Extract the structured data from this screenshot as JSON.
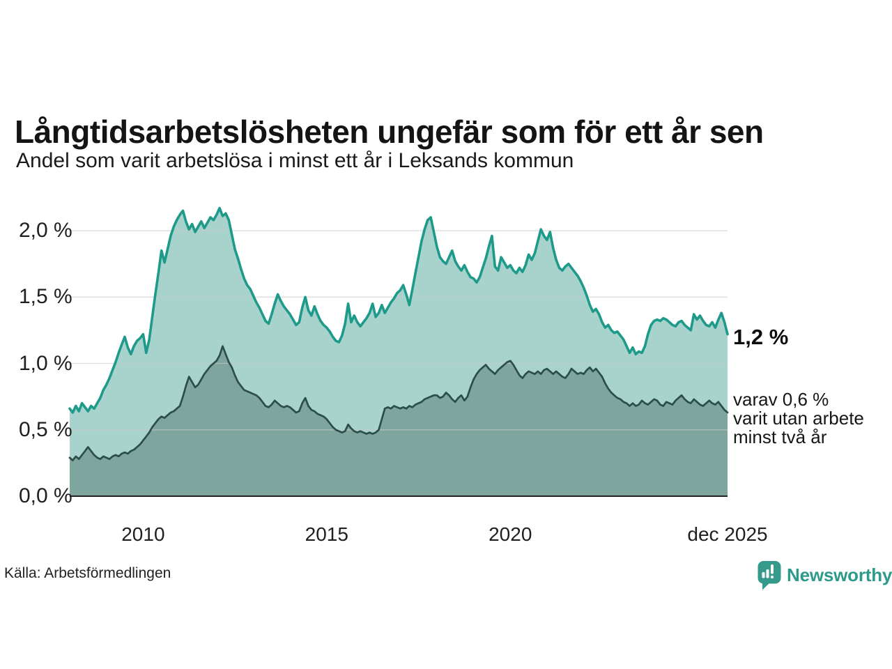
{
  "header": {
    "title": "Långtidsarbetslösheten ungefär som för ett år sen",
    "subtitle": "Andel som varit arbetslösa i minst ett år i Leksands kommun"
  },
  "labels": {
    "series1_end_value": "1,2 %",
    "series2_note_lines": [
      "varav 0,6 %",
      "varit utan arbete",
      "minst två år"
    ]
  },
  "footer": {
    "source": "Källa: Arbetsförmedlingen",
    "brand": "Newsworthy"
  },
  "colors": {
    "series1_line": "#1d9a8a",
    "series1_fill": "#a8d3cc",
    "series2_line": "#2d4e48",
    "series2_fill": "#7ea69e",
    "gridline": "rgba(200,200,200,0.55)",
    "axis_line": "#222222",
    "brand_teal": "#35998c"
  },
  "chart_data": {
    "type": "area",
    "title": "Långtidsarbetslösheten ungefär som för ett år sen",
    "subtitle": "Andel som varit arbetslösa i minst ett år i Leksands kommun",
    "unit": "%",
    "frequency": "monthly",
    "x_start": "2008-01",
    "x_end": "2025-12",
    "ylim": [
      0,
      2.26
    ],
    "grid": true,
    "ytick_labels": [
      "2,0 %",
      "1,5 %",
      "1,0 %",
      "0,5 %",
      "0,0 %"
    ],
    "ytick_values": [
      2.0,
      1.5,
      1.0,
      0.5,
      0.0
    ],
    "xticks": [
      {
        "label": "2010",
        "month_index": 24
      },
      {
        "label": "2015",
        "month_index": 84
      },
      {
        "label": "2020",
        "month_index": 144
      },
      {
        "label": "dec 2025",
        "month_index": 215
      }
    ],
    "series": [
      {
        "name": "Arbetslösa minst ett år",
        "end_label": "1,2 %",
        "end_value": 1.2,
        "values": [
          0.66,
          0.63,
          0.68,
          0.64,
          0.7,
          0.67,
          0.64,
          0.68,
          0.66,
          0.7,
          0.74,
          0.8,
          0.84,
          0.89,
          0.95,
          1.01,
          1.08,
          1.14,
          1.2,
          1.12,
          1.07,
          1.13,
          1.17,
          1.19,
          1.22,
          1.08,
          1.18,
          1.35,
          1.52,
          1.68,
          1.85,
          1.76,
          1.86,
          1.96,
          2.03,
          2.08,
          2.12,
          2.15,
          2.07,
          2.01,
          2.05,
          1.99,
          2.03,
          2.07,
          2.02,
          2.06,
          2.1,
          2.08,
          2.12,
          2.17,
          2.11,
          2.13,
          2.08,
          1.97,
          1.86,
          1.79,
          1.71,
          1.64,
          1.59,
          1.56,
          1.51,
          1.46,
          1.42,
          1.37,
          1.32,
          1.3,
          1.37,
          1.45,
          1.52,
          1.47,
          1.43,
          1.4,
          1.37,
          1.33,
          1.29,
          1.31,
          1.42,
          1.5,
          1.4,
          1.36,
          1.43,
          1.37,
          1.32,
          1.29,
          1.27,
          1.24,
          1.2,
          1.17,
          1.16,
          1.21,
          1.3,
          1.45,
          1.31,
          1.36,
          1.31,
          1.28,
          1.31,
          1.34,
          1.38,
          1.45,
          1.35,
          1.38,
          1.44,
          1.38,
          1.42,
          1.46,
          1.49,
          1.53,
          1.55,
          1.59,
          1.52,
          1.44,
          1.56,
          1.68,
          1.8,
          1.92,
          2.01,
          2.08,
          2.1,
          1.99,
          1.88,
          1.8,
          1.77,
          1.75,
          1.8,
          1.85,
          1.77,
          1.73,
          1.7,
          1.74,
          1.69,
          1.65,
          1.64,
          1.61,
          1.65,
          1.72,
          1.79,
          1.88,
          1.96,
          1.73,
          1.7,
          1.8,
          1.76,
          1.72,
          1.74,
          1.7,
          1.68,
          1.72,
          1.69,
          1.74,
          1.82,
          1.78,
          1.83,
          1.92,
          2.01,
          1.96,
          1.93,
          1.99,
          1.87,
          1.78,
          1.72,
          1.7,
          1.73,
          1.75,
          1.72,
          1.69,
          1.66,
          1.62,
          1.57,
          1.51,
          1.44,
          1.39,
          1.41,
          1.37,
          1.31,
          1.27,
          1.29,
          1.25,
          1.23,
          1.24,
          1.21,
          1.18,
          1.13,
          1.08,
          1.12,
          1.07,
          1.09,
          1.08,
          1.13,
          1.22,
          1.29,
          1.32,
          1.33,
          1.32,
          1.34,
          1.33,
          1.31,
          1.29,
          1.28,
          1.31,
          1.32,
          1.29,
          1.27,
          1.25,
          1.37,
          1.33,
          1.36,
          1.32,
          1.29,
          1.28,
          1.31,
          1.27,
          1.33,
          1.38,
          1.31,
          1.22
        ]
      },
      {
        "name": "Arbetslösa minst två år",
        "end_label": "varav 0,6 % varit utan arbete minst två år",
        "end_value": 0.6,
        "values": [
          0.29,
          0.27,
          0.3,
          0.28,
          0.31,
          0.34,
          0.37,
          0.34,
          0.31,
          0.29,
          0.28,
          0.3,
          0.29,
          0.28,
          0.3,
          0.31,
          0.3,
          0.32,
          0.33,
          0.32,
          0.34,
          0.35,
          0.37,
          0.39,
          0.42,
          0.45,
          0.48,
          0.52,
          0.55,
          0.58,
          0.6,
          0.59,
          0.61,
          0.63,
          0.64,
          0.66,
          0.68,
          0.75,
          0.83,
          0.9,
          0.86,
          0.82,
          0.84,
          0.88,
          0.92,
          0.95,
          0.98,
          1.0,
          1.02,
          1.06,
          1.13,
          1.07,
          1.01,
          0.97,
          0.91,
          0.86,
          0.83,
          0.8,
          0.79,
          0.78,
          0.77,
          0.76,
          0.74,
          0.71,
          0.68,
          0.67,
          0.69,
          0.72,
          0.7,
          0.68,
          0.67,
          0.68,
          0.67,
          0.65,
          0.63,
          0.64,
          0.7,
          0.74,
          0.68,
          0.65,
          0.64,
          0.62,
          0.61,
          0.6,
          0.58,
          0.55,
          0.52,
          0.5,
          0.49,
          0.48,
          0.49,
          0.54,
          0.51,
          0.49,
          0.48,
          0.49,
          0.48,
          0.47,
          0.48,
          0.47,
          0.48,
          0.5,
          0.58,
          0.66,
          0.67,
          0.66,
          0.68,
          0.67,
          0.66,
          0.67,
          0.66,
          0.68,
          0.67,
          0.69,
          0.7,
          0.71,
          0.73,
          0.74,
          0.75,
          0.76,
          0.76,
          0.74,
          0.75,
          0.78,
          0.76,
          0.73,
          0.71,
          0.74,
          0.76,
          0.72,
          0.75,
          0.82,
          0.88,
          0.92,
          0.95,
          0.97,
          0.99,
          0.96,
          0.94,
          0.92,
          0.95,
          0.97,
          0.99,
          1.01,
          1.02,
          0.99,
          0.95,
          0.91,
          0.89,
          0.92,
          0.94,
          0.93,
          0.92,
          0.94,
          0.92,
          0.95,
          0.96,
          0.94,
          0.92,
          0.94,
          0.92,
          0.9,
          0.89,
          0.92,
          0.96,
          0.94,
          0.92,
          0.93,
          0.92,
          0.95,
          0.97,
          0.94,
          0.96,
          0.93,
          0.9,
          0.85,
          0.81,
          0.78,
          0.76,
          0.74,
          0.73,
          0.71,
          0.7,
          0.68,
          0.7,
          0.68,
          0.69,
          0.72,
          0.7,
          0.69,
          0.71,
          0.73,
          0.72,
          0.69,
          0.68,
          0.71,
          0.7,
          0.69,
          0.72,
          0.74,
          0.76,
          0.73,
          0.71,
          0.7,
          0.73,
          0.71,
          0.69,
          0.68,
          0.7,
          0.72,
          0.7,
          0.69,
          0.71,
          0.68,
          0.65,
          0.63
        ]
      }
    ]
  }
}
